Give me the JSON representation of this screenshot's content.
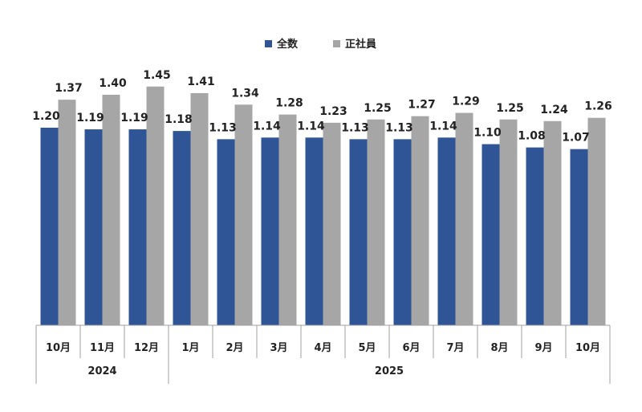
{
  "chart_data": {
    "type": "bar",
    "categories": [
      "10月",
      "11月",
      "12月",
      "1月",
      "2月",
      "3月",
      "4月",
      "5月",
      "6月",
      "7月",
      "8月",
      "9月",
      "10月"
    ],
    "groups": [
      {
        "label": "2024",
        "count": 3
      },
      {
        "label": "2025",
        "count": 10
      }
    ],
    "series": [
      {
        "name": "全数",
        "color": "#2F5597",
        "values": [
          1.2,
          1.19,
          1.19,
          1.18,
          1.13,
          1.14,
          1.14,
          1.13,
          1.13,
          1.14,
          1.1,
          1.08,
          1.07
        ]
      },
      {
        "name": "正社員",
        "color": "#A6A6A6",
        "values": [
          1.37,
          1.4,
          1.45,
          1.41,
          1.34,
          1.28,
          1.23,
          1.25,
          1.27,
          1.29,
          1.25,
          1.24,
          1.26
        ]
      }
    ],
    "ylim": [
      0,
      1.6
    ],
    "grid": false,
    "legend": "top-center"
  }
}
